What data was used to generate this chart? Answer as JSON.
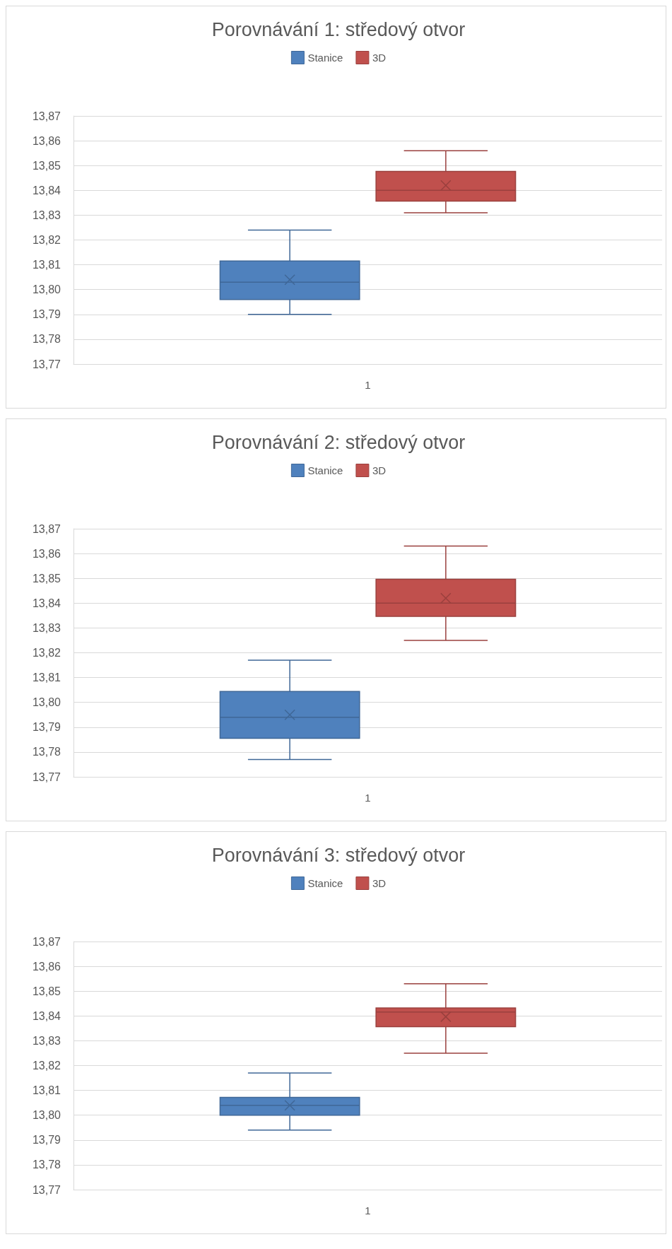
{
  "chart_data": [
    {
      "type": "box",
      "title": "Porovnávání 1: středový otvor",
      "categories": [
        "1"
      ],
      "legend": "top",
      "grid": "y",
      "ylim": [
        13.77,
        13.87
      ],
      "yticks": [
        {
          "value": 13.77,
          "label": "13,77"
        },
        {
          "value": 13.78,
          "label": "13,78"
        },
        {
          "value": 13.79,
          "label": "13,79"
        },
        {
          "value": 13.8,
          "label": "13,80"
        },
        {
          "value": 13.81,
          "label": "13,81"
        },
        {
          "value": 13.82,
          "label": "13,82"
        },
        {
          "value": 13.83,
          "label": "13,83"
        },
        {
          "value": 13.84,
          "label": "13,84"
        },
        {
          "value": 13.85,
          "label": "13,85"
        },
        {
          "value": 13.86,
          "label": "13,86"
        },
        {
          "value": 13.87,
          "label": "13,87"
        }
      ],
      "series": [
        {
          "name": "Stanice",
          "color": "#4f81bd",
          "boxes": [
            {
              "low": 13.79,
              "q1": 13.796,
              "median": 13.803,
              "q3": 13.8115,
              "high": 13.824,
              "mean": 13.804
            }
          ]
        },
        {
          "name": "3D",
          "color": "#c0504d",
          "boxes": [
            {
              "low": 13.831,
              "q1": 13.8357,
              "median": 13.84,
              "q3": 13.8476,
              "high": 13.856,
              "mean": 13.842
            }
          ]
        }
      ]
    },
    {
      "type": "box",
      "title": "Porovnávání 2: středový otvor",
      "categories": [
        "1"
      ],
      "legend": "top",
      "grid": "y",
      "ylim": [
        13.77,
        13.87
      ],
      "yticks": [
        {
          "value": 13.77,
          "label": "13,77"
        },
        {
          "value": 13.78,
          "label": "13,78"
        },
        {
          "value": 13.79,
          "label": "13,79"
        },
        {
          "value": 13.8,
          "label": "13,80"
        },
        {
          "value": 13.81,
          "label": "13,81"
        },
        {
          "value": 13.82,
          "label": "13,82"
        },
        {
          "value": 13.83,
          "label": "13,83"
        },
        {
          "value": 13.84,
          "label": "13,84"
        },
        {
          "value": 13.85,
          "label": "13,85"
        },
        {
          "value": 13.86,
          "label": "13,86"
        },
        {
          "value": 13.87,
          "label": "13,87"
        }
      ],
      "series": [
        {
          "name": "Stanice",
          "color": "#4f81bd",
          "boxes": [
            {
              "low": 13.777,
              "q1": 13.7855,
              "median": 13.794,
              "q3": 13.8044,
              "high": 13.817,
              "mean": 13.795
            }
          ]
        },
        {
          "name": "3D",
          "color": "#c0504d",
          "boxes": [
            {
              "low": 13.825,
              "q1": 13.8347,
              "median": 13.84,
              "q3": 13.8496,
              "high": 13.863,
              "mean": 13.842
            }
          ]
        }
      ]
    },
    {
      "type": "box",
      "title": "Porovnávání 3: středový otvor",
      "categories": [
        "1"
      ],
      "legend": "top",
      "grid": "y",
      "ylim": [
        13.77,
        13.87
      ],
      "yticks": [
        {
          "value": 13.77,
          "label": "13,77"
        },
        {
          "value": 13.78,
          "label": "13,78"
        },
        {
          "value": 13.79,
          "label": "13,79"
        },
        {
          "value": 13.8,
          "label": "13,80"
        },
        {
          "value": 13.81,
          "label": "13,81"
        },
        {
          "value": 13.82,
          "label": "13,82"
        },
        {
          "value": 13.83,
          "label": "13,83"
        },
        {
          "value": 13.84,
          "label": "13,84"
        },
        {
          "value": 13.85,
          "label": "13,85"
        },
        {
          "value": 13.86,
          "label": "13,86"
        },
        {
          "value": 13.87,
          "label": "13,87"
        }
      ],
      "series": [
        {
          "name": "Stanice",
          "color": "#4f81bd",
          "boxes": [
            {
              "low": 13.794,
              "q1": 13.8,
              "median": 13.804,
              "q3": 13.8072,
              "high": 13.817,
              "mean": 13.804
            }
          ]
        },
        {
          "name": "3D",
          "color": "#c0504d",
          "boxes": [
            {
              "low": 13.825,
              "q1": 13.8357,
              "median": 13.8416,
              "q3": 13.8432,
              "high": 13.853,
              "mean": 13.8397
            }
          ]
        }
      ]
    }
  ]
}
